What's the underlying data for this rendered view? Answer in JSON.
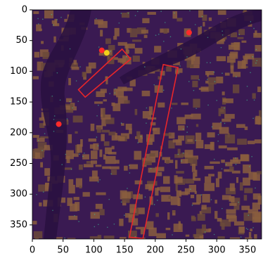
{
  "chart_data": {
    "type": "image",
    "xlim": [
      0,
      373
    ],
    "ylim": [
      373,
      0
    ],
    "xticks": [
      0,
      50,
      100,
      150,
      200,
      250,
      300,
      350
    ],
    "yticks": [
      0,
      50,
      100,
      150,
      200,
      250,
      300,
      350
    ],
    "series": [
      {
        "color": "#ff2a2a",
        "x": [
          113,
          255,
          43
        ],
        "y": [
          66,
          37,
          186
        ]
      },
      {
        "color": "#f2d21b",
        "x": [
          121
        ],
        "y": [
          70
        ]
      }
    ],
    "regions": [
      {
        "color": "#e8262a",
        "x": [
          75,
          146,
          160,
          86
        ],
        "y": [
          130,
          64,
          80,
          142
        ]
      },
      {
        "color": "#e8262a",
        "x": [
          213,
          237,
          180,
          158
        ],
        "y": [
          89,
          94,
          372,
          370
        ]
      }
    ]
  }
}
